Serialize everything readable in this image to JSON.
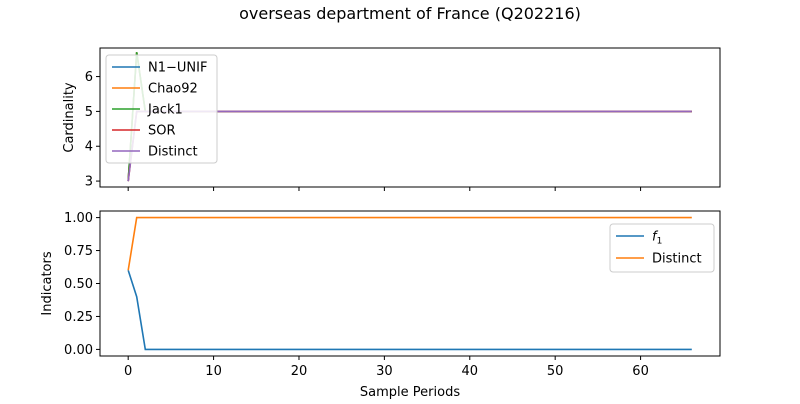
{
  "figure": {
    "title": "overseas department of France (Q202216)",
    "xlabel": "Sample Periods"
  },
  "chart_data": [
    {
      "type": "line",
      "title": "",
      "xlabel": "",
      "ylabel": "Cardinality",
      "xlim": [
        -3.3,
        69.3
      ],
      "ylim": [
        2.83,
        6.82
      ],
      "x_ticks": [
        0,
        10,
        20,
        30,
        40,
        50,
        60
      ],
      "x_tick_labels_visible": false,
      "y_ticks": [
        3,
        4,
        5,
        6
      ],
      "y_tick_labels": [
        "3",
        "4",
        "5",
        "6"
      ],
      "grid": false,
      "legend_position": "upper-left",
      "series": [
        {
          "name": "N1−UNIF",
          "color": "#1f77b4",
          "x": [
            0,
            1,
            2,
            66
          ],
          "y": [
            3,
            6.7,
            5,
            5
          ]
        },
        {
          "name": "Chao92",
          "color": "#ff7f0e",
          "x": [
            0,
            1,
            2,
            66
          ],
          "y": [
            3,
            6.7,
            5,
            5
          ]
        },
        {
          "name": "Jack1",
          "color": "#2ca02c",
          "x": [
            0,
            1,
            2,
            66
          ],
          "y": [
            3,
            6.7,
            5,
            5
          ]
        },
        {
          "name": "SOR",
          "color": "#d62728",
          "x": [
            0,
            1,
            2,
            66
          ],
          "y": [
            3,
            5,
            5,
            5
          ]
        },
        {
          "name": "Distinct",
          "color": "#9467bd",
          "x": [
            0,
            1,
            2,
            66
          ],
          "y": [
            3,
            5,
            5,
            5
          ]
        }
      ]
    },
    {
      "type": "line",
      "title": "",
      "xlabel": "Sample Periods",
      "ylabel": "Indicators",
      "xlim": [
        -3.3,
        69.3
      ],
      "ylim": [
        -0.05,
        1.05
      ],
      "x_ticks": [
        0,
        10,
        20,
        30,
        40,
        50,
        60
      ],
      "x_tick_labels": [
        "0",
        "10",
        "20",
        "30",
        "40",
        "50",
        "60"
      ],
      "y_ticks": [
        0,
        0.25,
        0.5,
        0.75,
        1.0
      ],
      "y_tick_labels": [
        "0.00",
        "0.25",
        "0.50",
        "0.75",
        "1.00"
      ],
      "grid": false,
      "legend_position": "upper-right",
      "series": [
        {
          "name": "f1",
          "name_base": "f",
          "name_sub": "1",
          "color": "#1f77b4",
          "x": [
            0,
            1,
            2,
            66
          ],
          "y": [
            0.6,
            0.4,
            0,
            0
          ]
        },
        {
          "name": "Distinct",
          "color": "#ff7f0e",
          "x": [
            0,
            1,
            2,
            66
          ],
          "y": [
            0.6,
            1,
            1,
            1
          ]
        }
      ]
    }
  ]
}
